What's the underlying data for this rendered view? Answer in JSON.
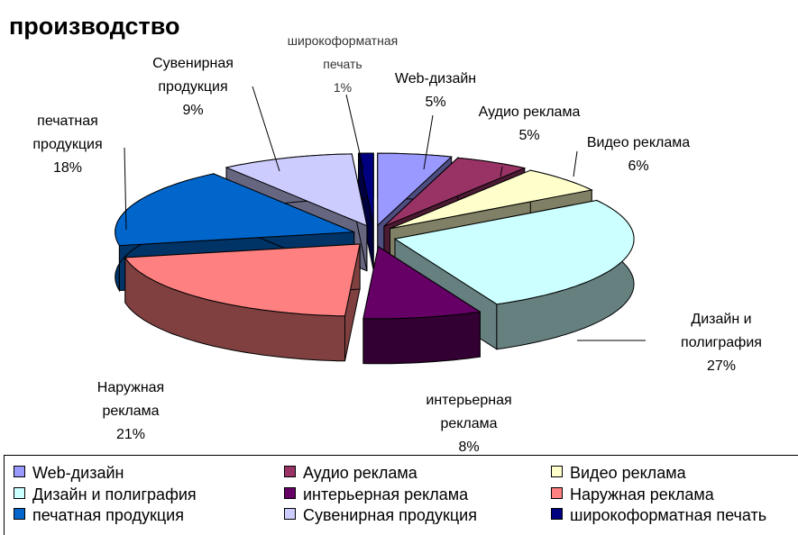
{
  "chart_data": {
    "type": "pie3d",
    "title": "производство",
    "categories": [
      "Web-дизайн",
      "Аудио реклама",
      "Видео реклама",
      "Дизайн и полиграфия",
      "интерьерная реклама",
      "Наружная реклама",
      "печатная продукция",
      "Сувенирная продукция",
      "широкоформатная печать"
    ],
    "values": [
      5,
      5,
      6,
      27,
      8,
      21,
      18,
      9,
      1
    ],
    "value_labels": [
      "5%",
      "5%",
      "6%",
      "27%",
      "8%",
      "21%",
      "18%",
      "9%",
      "1%"
    ],
    "colors": [
      "#9999FF",
      "#993366",
      "#FFFFCC",
      "#CCFFFF",
      "#660066",
      "#FF8080",
      "#0066CC",
      "#CCCCFF",
      "#000080"
    ],
    "legend": "bottom"
  }
}
